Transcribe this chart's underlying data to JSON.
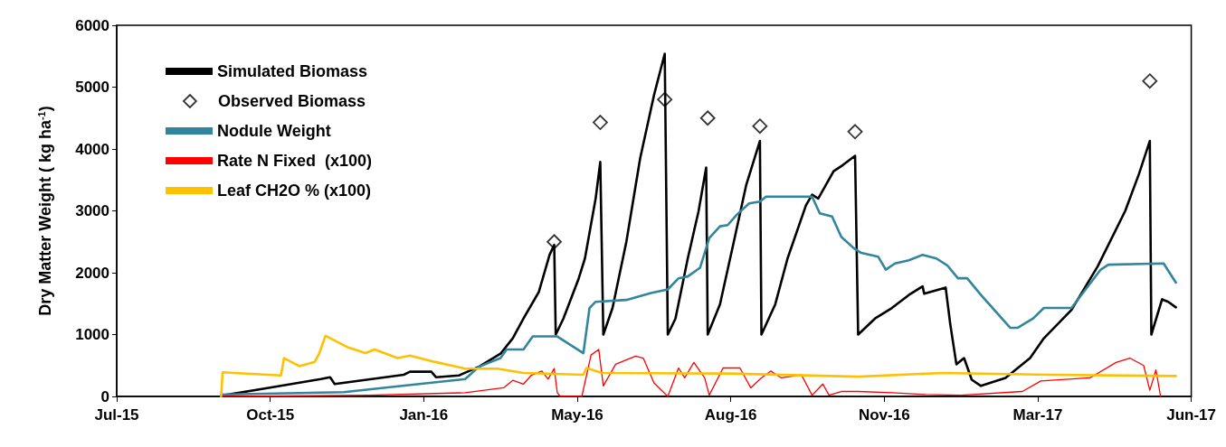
{
  "chart_data": {
    "type": "line",
    "ylabel": "Dry Matter Weight ( kg ha$^{-1}$)",
    "xlim": [
      "2015-07-15",
      "2017-06-14"
    ],
    "xticks": [
      {
        "value": "2015-07-15",
        "label": "Jul-15"
      },
      {
        "value": "2015-10-23",
        "label": "Oct-15"
      },
      {
        "value": "2016-01-31",
        "label": "Jan-16"
      },
      {
        "value": "2016-05-10",
        "label": "May-16"
      },
      {
        "value": "2016-08-18",
        "label": "Aug-16"
      },
      {
        "value": "2016-11-26",
        "label": "Nov-16"
      },
      {
        "value": "2017-03-06",
        "label": "Mar-17"
      },
      {
        "value": "2017-06-14",
        "label": "Jun-17"
      }
    ],
    "ylim": [
      0,
      6000
    ],
    "yticks": [
      0,
      1000,
      2000,
      3000,
      4000,
      5000,
      6000
    ],
    "grid": false,
    "legend": "top left",
    "marker": "none",
    "line_style": "solid",
    "series": [
      {
        "name": "Simulated Biomass",
        "color": "#000000",
        "x": [
          "2015-09-23",
          "2015-10-22",
          "2015-11-25",
          "2015-12-01",
          "2015-12-04",
          "2016-01-18",
          "2016-01-22",
          "2016-02-05",
          "2016-02-08",
          "2016-02-23",
          "2016-03-07",
          "2016-03-21",
          "2016-03-29",
          "2016-04-05",
          "2016-04-15",
          "2016-04-22",
          "2016-04-25",
          "2016-04-26",
          "2016-05-01",
          "2016-05-11",
          "2016-05-15",
          "2016-05-22",
          "2016-05-25",
          "2016-05-27",
          "2016-06-02",
          "2016-06-11",
          "2016-06-20",
          "2016-06-29",
          "2016-07-06",
          "2016-07-08",
          "2016-07-13",
          "2016-07-21",
          "2016-07-28",
          "2016-08-02",
          "2016-08-03",
          "2016-08-11",
          "2016-08-20",
          "2016-08-28",
          "2016-09-06",
          "2016-09-07",
          "2016-09-16",
          "2016-09-24",
          "2016-10-06",
          "2016-10-10",
          "2016-10-14",
          "2016-10-24",
          "2016-10-30",
          "2016-11-07",
          "2016-11-09",
          "2016-11-20",
          "2016-12-01",
          "2016-12-12",
          "2016-12-21",
          "2016-12-22",
          "2017-01-05",
          "2017-01-08",
          "2017-01-12",
          "2017-01-17",
          "2017-01-22",
          "2017-01-28",
          "2017-02-13",
          "2017-03-01",
          "2017-03-10",
          "2017-03-28",
          "2017-04-14",
          "2017-05-02",
          "2017-05-11",
          "2017-05-18",
          "2017-05-19",
          "2017-05-26",
          "2017-05-30",
          "2017-06-04"
        ],
        "values": [
          20,
          140,
          280,
          310,
          200,
          350,
          400,
          400,
          310,
          340,
          480,
          690,
          940,
          1260,
          1690,
          2290,
          2450,
          1000,
          1260,
          1910,
          2230,
          3200,
          3790,
          1000,
          1430,
          2500,
          3850,
          4870,
          5540,
          1000,
          1260,
          2230,
          2990,
          3700,
          1000,
          1490,
          2500,
          3410,
          4130,
          1000,
          1490,
          2230,
          3090,
          3260,
          3200,
          3640,
          3740,
          3890,
          1000,
          1260,
          1430,
          1640,
          1780,
          1660,
          1760,
          1170,
          520,
          620,
          270,
          170,
          300,
          620,
          940,
          1400,
          2100,
          3000,
          3600,
          4130,
          1000,
          1570,
          1530,
          1440
        ]
      },
      {
        "name": "Observed Biomass",
        "color": "#000000",
        "type": "scatter",
        "marker": "diamond",
        "x": [
          "2016-04-25",
          "2016-05-25",
          "2016-07-06",
          "2016-08-03",
          "2016-09-06",
          "2016-11-07",
          "2017-05-18"
        ],
        "values": [
          2500,
          4430,
          4800,
          4500,
          4370,
          4280,
          5100
        ]
      },
      {
        "name": "Nodule Weight",
        "color": "#31859c",
        "x": [
          "2015-09-21",
          "2015-12-10",
          "2016-01-28",
          "2016-02-27",
          "2016-03-07",
          "2016-03-21",
          "2016-03-25",
          "2016-04-05",
          "2016-04-11",
          "2016-04-27",
          "2016-05-14",
          "2016-05-18",
          "2016-05-22",
          "2016-06-11",
          "2016-06-27",
          "2016-07-08",
          "2016-07-15",
          "2016-07-21",
          "2016-07-29",
          "2016-08-04",
          "2016-08-11",
          "2016-08-16",
          "2016-08-22",
          "2016-08-30",
          "2016-09-06",
          "2016-09-10",
          "2016-10-10",
          "2016-10-15",
          "2016-10-23",
          "2016-10-29",
          "2016-11-06",
          "2016-11-11",
          "2016-11-22",
          "2016-11-27",
          "2016-12-03",
          "2016-12-12",
          "2016-12-21",
          "2016-12-30",
          "2017-01-06",
          "2017-01-13",
          "2017-01-19",
          "2017-01-28",
          "2017-02-16",
          "2017-02-21",
          "2017-03-03",
          "2017-03-10",
          "2017-03-28",
          "2017-04-16",
          "2017-04-21",
          "2017-05-27",
          "2017-06-04"
        ],
        "values": [
          30,
          70,
          200,
          280,
          480,
          620,
          760,
          760,
          970,
          970,
          700,
          1430,
          1530,
          1560,
          1670,
          1730,
          1910,
          1940,
          2080,
          2560,
          2750,
          2770,
          2940,
          3120,
          3150,
          3230,
          3230,
          2960,
          2910,
          2580,
          2400,
          2320,
          2260,
          2050,
          2150,
          2200,
          2290,
          2230,
          2120,
          1910,
          1910,
          1640,
          1110,
          1110,
          1260,
          1430,
          1430,
          2050,
          2130,
          2150,
          1840
        ]
      },
      {
        "name": "Rate N Fixed  (x100)",
        "color": "#ff0000",
        "x": [
          "2015-09-21",
          "2015-12-26",
          "2016-02-27",
          "2016-03-23",
          "2016-03-29",
          "2016-04-05",
          "2016-04-10",
          "2016-04-17",
          "2016-04-21",
          "2016-04-25",
          "2016-04-27",
          "2016-04-29",
          "2016-05-13",
          "2016-05-19",
          "2016-05-24",
          "2016-05-27",
          "2016-06-04",
          "2016-06-17",
          "2016-06-22",
          "2016-06-29",
          "2016-07-08",
          "2016-07-15",
          "2016-07-19",
          "2016-07-25",
          "2016-08-01",
          "2016-08-04",
          "2016-08-13",
          "2016-08-24",
          "2016-08-31",
          "2016-09-07",
          "2016-09-13",
          "2016-09-20",
          "2016-10-03",
          "2016-10-10",
          "2016-10-17",
          "2016-10-21",
          "2016-10-29",
          "2016-11-09",
          "2016-12-01",
          "2016-12-23",
          "2017-01-15",
          "2017-02-24",
          "2017-03-08",
          "2017-04-09",
          "2017-04-26",
          "2017-05-05",
          "2017-05-14",
          "2017-05-18",
          "2017-05-22",
          "2017-05-25"
        ],
        "values": [
          0,
          20,
          60,
          140,
          260,
          200,
          340,
          410,
          280,
          450,
          60,
          0,
          0,
          670,
          760,
          170,
          520,
          650,
          620,
          220,
          0,
          460,
          300,
          550,
          300,
          20,
          460,
          460,
          140,
          300,
          410,
          300,
          350,
          20,
          200,
          20,
          80,
          80,
          60,
          30,
          20,
          80,
          250,
          300,
          550,
          620,
          500,
          100,
          430,
          0
        ]
      },
      {
        "name": "Leaf CH2O % (x100)",
        "color": "#ffc000",
        "x": [
          "2015-09-21",
          "2015-09-22",
          "2015-10-30",
          "2015-11-01",
          "2015-11-11",
          "2015-11-21",
          "2015-11-24",
          "2015-11-28",
          "2015-12-12",
          "2015-12-24",
          "2015-12-30",
          "2016-01-14",
          "2016-01-22",
          "2016-02-07",
          "2016-02-27",
          "2016-03-19",
          "2016-04-05",
          "2016-05-14",
          "2016-05-16",
          "2016-05-26",
          "2016-08-17",
          "2016-11-09",
          "2017-01-03",
          "2017-03-14",
          "2017-06-04"
        ],
        "values": [
          0,
          390,
          340,
          620,
          490,
          560,
          700,
          980,
          800,
          700,
          760,
          620,
          660,
          560,
          450,
          450,
          380,
          350,
          460,
          380,
          370,
          320,
          380,
          350,
          330
        ]
      }
    ]
  }
}
